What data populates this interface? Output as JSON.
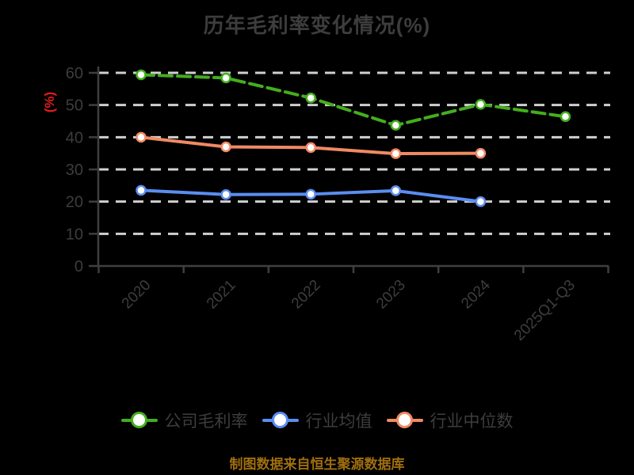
{
  "title": "历年毛利率变化情况(%)",
  "y_axis_label": "(%)",
  "source_note": "制图数据来自恒生聚源数据库",
  "colors": {
    "background": "#000000",
    "title_text": "#3d3d3d",
    "axis_line": "#3f3f3f",
    "tick_label": "#3d3d3d",
    "gridline": "#d0d0d0",
    "y_axis_label_red": "#e61c1c",
    "source_note_gold": "#a06e0e",
    "marker_fill": "#ffffff"
  },
  "chart_data": {
    "type": "line",
    "title": "历年毛利率变化情况(%)",
    "categories": [
      "2020",
      "2021",
      "2022",
      "2023",
      "2024",
      "2025Q1-Q3"
    ],
    "xlabel": "",
    "ylabel": "(%)",
    "ylim": [
      0,
      60
    ],
    "yticks": [
      0,
      10,
      20,
      30,
      40,
      50,
      60
    ],
    "grid": "horizontal-dashed",
    "legend_position": "bottom",
    "x_tick_label_rotation": 45,
    "series": [
      {
        "name": "公司毛利率",
        "color": "#44ae1d",
        "line_style": "dashed",
        "values": [
          59.4,
          58.4,
          52.2,
          43.7,
          50.2,
          46.4
        ]
      },
      {
        "name": "行业均值",
        "color": "#5b8df0",
        "line_style": "solid",
        "values": [
          23.5,
          22.2,
          22.3,
          23.4,
          20,
          null
        ]
      },
      {
        "name": "行业中位数",
        "color": "#f08a63",
        "line_style": "solid",
        "values": [
          40,
          37,
          36.8,
          34.9,
          35,
          null
        ]
      }
    ]
  }
}
